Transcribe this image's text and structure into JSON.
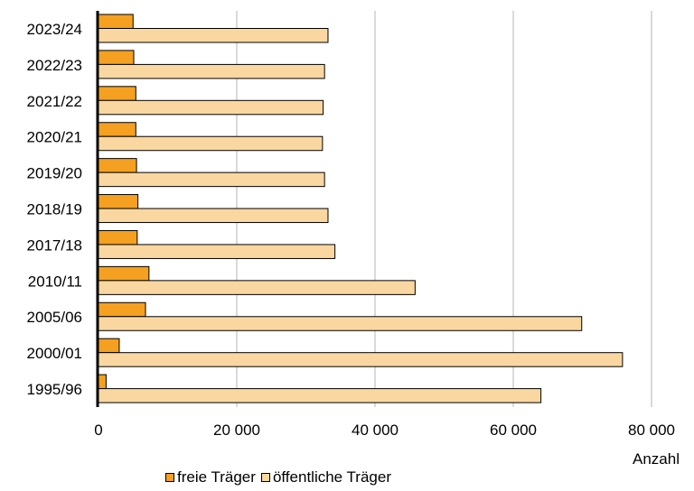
{
  "chart_data": {
    "type": "bar",
    "orientation": "horizontal",
    "categories": [
      "2023/24",
      "2022/23",
      "2021/22",
      "2020/21",
      "2019/20",
      "2018/19",
      "2017/18",
      "2010/11",
      "2005/06",
      "2000/01",
      "1995/96"
    ],
    "series": [
      {
        "name": "freie Träger",
        "color": "#f5a020",
        "values": [
          5000,
          5100,
          5400,
          5400,
          5500,
          5700,
          5600,
          7300,
          6800,
          3000,
          1100
        ]
      },
      {
        "name": "öffentliche Träger",
        "color": "#fad7a0",
        "values": [
          33200,
          32700,
          32500,
          32400,
          32700,
          33200,
          34200,
          45800,
          69900,
          75800,
          64000
        ]
      }
    ],
    "xlim": [
      0,
      80000
    ],
    "xticks": [
      0,
      20000,
      40000,
      60000,
      80000
    ],
    "xtick_labels": [
      "0",
      "20 000",
      "40 000",
      "60 000",
      "80 000"
    ],
    "xlabel": "Anzahl",
    "ylabel": "",
    "grid": "vertical",
    "legend": "bottom"
  }
}
